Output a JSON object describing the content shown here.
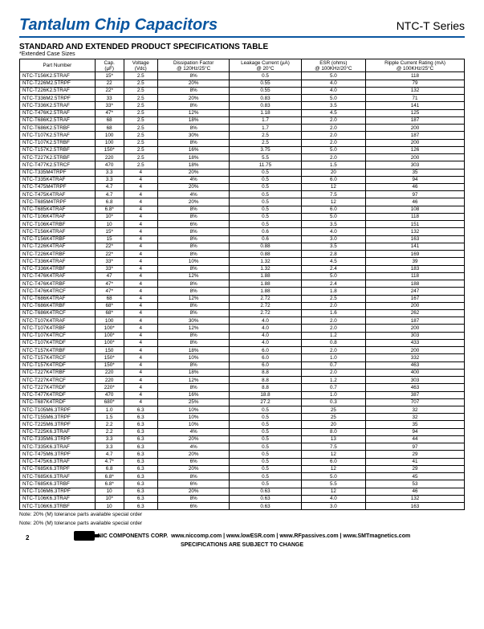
{
  "header": {
    "title": "Tantalum Chip Capacitors",
    "series": "NTC-T Series"
  },
  "subtitle": "STANDARD AND EXTENDED PRODUCT SPECIFICATIONS TABLE",
  "note_ext": "*Extended Case Sizes",
  "cols": [
    "Part Number",
    "Cap.\n(µF)",
    "Voltage\n(Vdc)",
    "Dissipation Factor\n@ 120Hz/25°C",
    "Leakage Current (µA)\n@ 20°C",
    "ESR (ohms)\n@ 100KHz/20°C",
    "Ripple Current Rating (mA)\n@ 100KHz/25°C"
  ],
  "rows": [
    [
      "NTC-T156K2.5TRAF",
      "15*",
      "2.5",
      "8%",
      "0.5",
      "5.0",
      "118"
    ],
    [
      "NTC-T226M2.5TRPF",
      "22",
      "2.5",
      "20%",
      "0.55",
      "4.0",
      "79"
    ],
    [
      "NTC-T226K2.5TRAF",
      "22*",
      "2.5",
      "8%",
      "0.55",
      "4.0",
      "132"
    ],
    [
      "NTC-T336M2.5TRPF",
      "33",
      "2.5",
      "20%",
      "0.83",
      "5.0",
      "71"
    ],
    [
      "NTC-T336K2.5TRAF",
      "33*",
      "2.5",
      "8%",
      "0.83",
      "3.5",
      "141"
    ],
    [
      "NTC-T476K2.5TRAF",
      "47*",
      "2.5",
      "12%",
      "1.18",
      "4.5",
      "125"
    ],
    [
      "NTC-T686K2.5TRAF",
      "68",
      "2.5",
      "18%",
      "1.7",
      "2.0",
      "187"
    ],
    [
      "NTC-T686K2.5TRBF",
      "68",
      "2.5",
      "8%",
      "1.7",
      "2.0",
      "200"
    ],
    [
      "NTC-T107K2.5TRAF",
      "100",
      "2.5",
      "30%",
      "2.5",
      "2.0",
      "187"
    ],
    [
      "NTC-T107K2.5TRBF",
      "100",
      "2.5",
      "8%",
      "2.5",
      "2.0",
      "200"
    ],
    [
      "NTC-T157K2.5TRBF",
      "150*",
      "2.5",
      "16%",
      "3.75",
      "5.0",
      "126"
    ],
    [
      "NTC-T227K2.5TRBF",
      "220",
      "2.5",
      "18%",
      "5.5",
      "2.0",
      "200"
    ],
    [
      "NTC-T477K2.5TRCF",
      "470",
      "2.5",
      "18%",
      "11.75",
      "1.5",
      "303"
    ],
    [
      "NTC-T335M4TRPF",
      "3.3",
      "4",
      "20%",
      "0.5",
      "20",
      "35"
    ],
    [
      "NTC-T335K4TRAF",
      "3.3",
      "4",
      "4%",
      "0.5",
      "6.0",
      "94"
    ],
    [
      "NTC-T475M4TRPF",
      "4.7",
      "4",
      "20%",
      "0.5",
      "12",
      "46"
    ],
    [
      "NTC-T475K4TRAF",
      "4.7",
      "4",
      "4%",
      "0.5",
      "7.5",
      "97"
    ],
    [
      "NTC-T685M4TRPF",
      "6.8",
      "4",
      "20%",
      "0.5",
      "12",
      "46"
    ],
    [
      "NTC-T685K4TRAF",
      "6.8*",
      "4",
      "8%",
      "0.5",
      "6.0",
      "108"
    ],
    [
      "NTC-T106K4TRAF",
      "10*",
      "4",
      "8%",
      "0.5",
      "5.0",
      "118"
    ],
    [
      "NTC-T106K4TRBF",
      "10",
      "4",
      "6%",
      "0.5",
      "3.5",
      "151"
    ],
    [
      "NTC-T156K4TRAF",
      "15*",
      "4",
      "8%",
      "0.6",
      "4.0",
      "132"
    ],
    [
      "NTC-T156K4TRBF",
      "15",
      "4",
      "8%",
      "0.6",
      "3.0",
      "163"
    ],
    [
      "NTC-T226K4TRAF",
      "22*",
      "4",
      "8%",
      "0.88",
      "3.5",
      "141"
    ],
    [
      "NTC-T226K4TRBF",
      "22*",
      "4",
      "8%",
      "0.88",
      "2.8",
      "169"
    ],
    [
      "NTC-T336K4TRAF",
      "33*",
      "4",
      "10%",
      "1.32",
      "4.5",
      "39"
    ],
    [
      "NTC-T336K4TRBF",
      "33*",
      "4",
      "8%",
      "1.32",
      "2.4",
      "183"
    ],
    [
      "NTC-T476K4TRAF",
      "47",
      "4",
      "12%",
      "1.88",
      "5.0",
      "118"
    ],
    [
      "NTC-T476K4TRBF",
      "47*",
      "4",
      "8%",
      "1.88",
      "2.4",
      "188"
    ],
    [
      "NTC-T476K4TRCF",
      "47*",
      "4",
      "8%",
      "1.88",
      "1.8",
      "247"
    ],
    [
      "NTC-T686K4TRAF",
      "68",
      "4",
      "12%",
      "2.72",
      "2.5",
      "167"
    ],
    [
      "NTC-T686K4TRBF",
      "68*",
      "4",
      "8%",
      "2.72",
      "2.0",
      "200"
    ],
    [
      "NTC-T686K4TRCF",
      "68*",
      "4",
      "8%",
      "2.72",
      "1.6",
      "262"
    ],
    [
      "NTC-T107K4TRAF",
      "100",
      "4",
      "30%",
      "4.0",
      "2.0",
      "187"
    ],
    [
      "NTC-T107K4TRBF",
      "100*",
      "4",
      "12%",
      "4.0",
      "2.0",
      "200"
    ],
    [
      "NTC-T107K4TRCF",
      "100*",
      "4",
      "8%",
      "4.0",
      "1.2",
      "303"
    ],
    [
      "NTC-T107K4TRDF",
      "100*",
      "4",
      "8%",
      "4.0",
      "0.8",
      "433"
    ],
    [
      "NTC-T157K4TRBF",
      "150",
      "4",
      "18%",
      "6.0",
      "2.0",
      "200"
    ],
    [
      "NTC-T157K4TRCF",
      "150*",
      "4",
      "10%",
      "6.0",
      "1.0",
      "332"
    ],
    [
      "NTC-T157K4TRDF",
      "150*",
      "4",
      "8%",
      "6.0",
      "0.7",
      "463"
    ],
    [
      "NTC-T227K4TRBF",
      "220",
      "4",
      "18%",
      "8.8",
      "2.0",
      "400"
    ],
    [
      "NTC-T227K4TRCF",
      "220",
      "4",
      "12%",
      "8.8",
      "1.2",
      "303"
    ],
    [
      "NTC-T227K4TRDF",
      "220*",
      "4",
      "8%",
      "8.8",
      "0.7",
      "463"
    ],
    [
      "NTC-T477K4TRDF",
      "470",
      "4",
      "16%",
      "18.8",
      "1.0",
      "387"
    ],
    [
      "NTC-T687K4TRDF",
      "680*",
      "4",
      "25%",
      "27.2",
      "0.3",
      "707"
    ],
    [
      "NTC-T105M6.3TRPF",
      "1.0",
      "6.3",
      "10%",
      "0.5",
      "25",
      "32"
    ],
    [
      "NTC-T155M6.3TRPF",
      "1.5",
      "6.3",
      "10%",
      "0.5",
      "25",
      "32"
    ],
    [
      "NTC-T225M6.3TRPF",
      "2.2",
      "6.3",
      "10%",
      "0.5",
      "20",
      "35"
    ],
    [
      "NTC-T225K6.3TRAF",
      "2.2",
      "6.3",
      "4%",
      "0.5",
      "8.0",
      "94"
    ],
    [
      "NTC-T335M6.3TRPF",
      "3.3",
      "6.3",
      "20%",
      "0.5",
      "13",
      "44"
    ],
    [
      "NTC-T335K6.3TRAF",
      "3.3",
      "6.3",
      "4%",
      "0.5",
      "7.5",
      "97"
    ],
    [
      "NTC-T475M6.3TRPF",
      "4.7",
      "6.3",
      "20%",
      "0.5",
      "12",
      "29"
    ],
    [
      "NTC-T475K6.3TRAF",
      "4.7*",
      "6.3",
      "6%",
      "0.5",
      "6.0",
      "41"
    ],
    [
      "NTC-T685K6.3TRPF",
      "6.8",
      "6.3",
      "20%",
      "0.5",
      "12",
      "29"
    ],
    [
      "NTC-T685K6.3TRAF",
      "6.8*",
      "6.3",
      "8%",
      "0.5",
      "5.0",
      "45"
    ],
    [
      "NTC-T685K6.3TRBF",
      "6.8*",
      "6.3",
      "6%",
      "0.5",
      "5.5",
      "53"
    ],
    [
      "NTC-T106M6.3TRPF",
      "10",
      "6.3",
      "20%",
      "0.63",
      "12",
      "46"
    ],
    [
      "NTC-T106K6.3TRAF",
      "10*",
      "6.3",
      "8%",
      "0.63",
      "4.0",
      "132"
    ],
    [
      "NTC-T106K6.3TRBF",
      "10",
      "6.3",
      "6%",
      "0.63",
      "3.0",
      "163"
    ]
  ],
  "table_note": "Note: 20% (M) tolerance parts available special order",
  "footer": {
    "overlay": "Note: 20% (M) tolerance parts available special order",
    "corp": "NIC COMPONENTS CORP.",
    "sites": "www.niccomp.com   |   www.lowESR.com   |   www.RFpassives.com   |   www.SMTmagnetics.com",
    "disclaimer": "SPECIFICATIONS ARE SUBJECT TO CHANGE",
    "page": "2"
  }
}
